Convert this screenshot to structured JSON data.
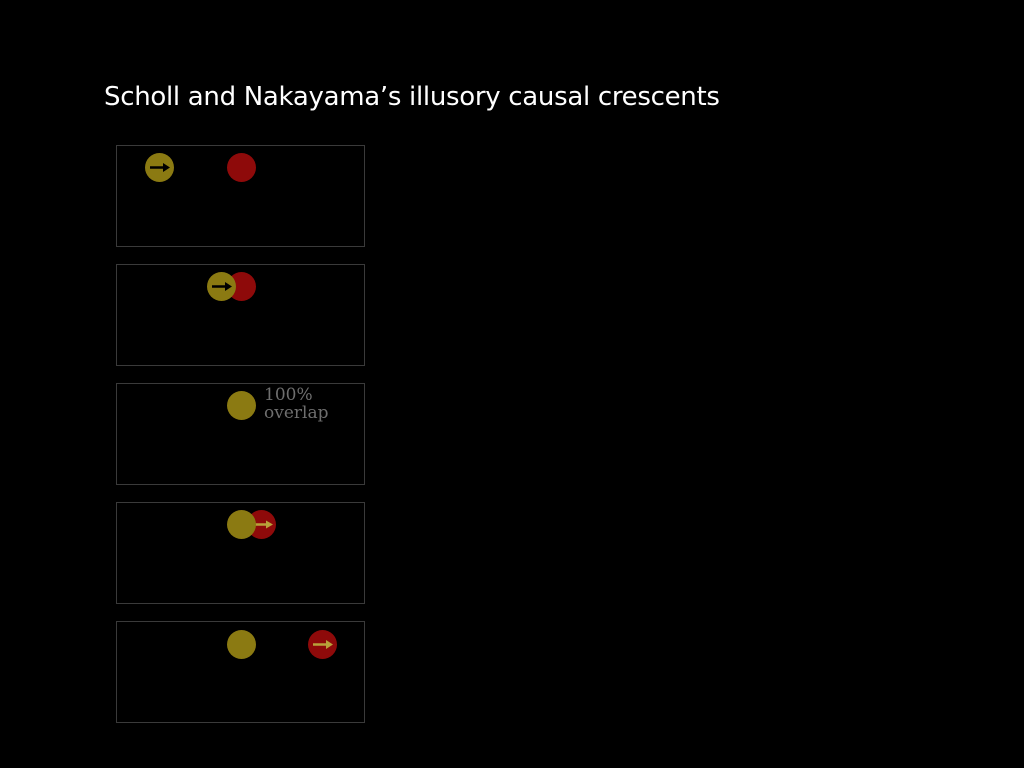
{
  "slide": {
    "title": "Scholl and Nakayama’s illusory causal crescents"
  },
  "colors": {
    "background": "#000000",
    "frame_border": "#3a3a3a",
    "yellow_ball": "#8b7a12",
    "red_ball": "#8e0a0a",
    "arrow_on_yellow": "#000000",
    "arrow_on_red": "#b8a23a",
    "label": "#6e6e6e"
  },
  "frames": [
    {
      "moving_ball": "yellow",
      "arrow_icon": "right-arrow-icon",
      "caption": ""
    },
    {
      "moving_ball": "yellow",
      "arrow_icon": "right-arrow-icon",
      "caption": ""
    },
    {
      "moving_ball": "none",
      "arrow_icon": "",
      "caption_line1": "100%",
      "caption_line2": "overlap"
    },
    {
      "moving_ball": "red",
      "arrow_icon": "right-arrow-icon",
      "caption": ""
    },
    {
      "moving_ball": "red",
      "arrow_icon": "right-arrow-icon",
      "caption": ""
    }
  ]
}
